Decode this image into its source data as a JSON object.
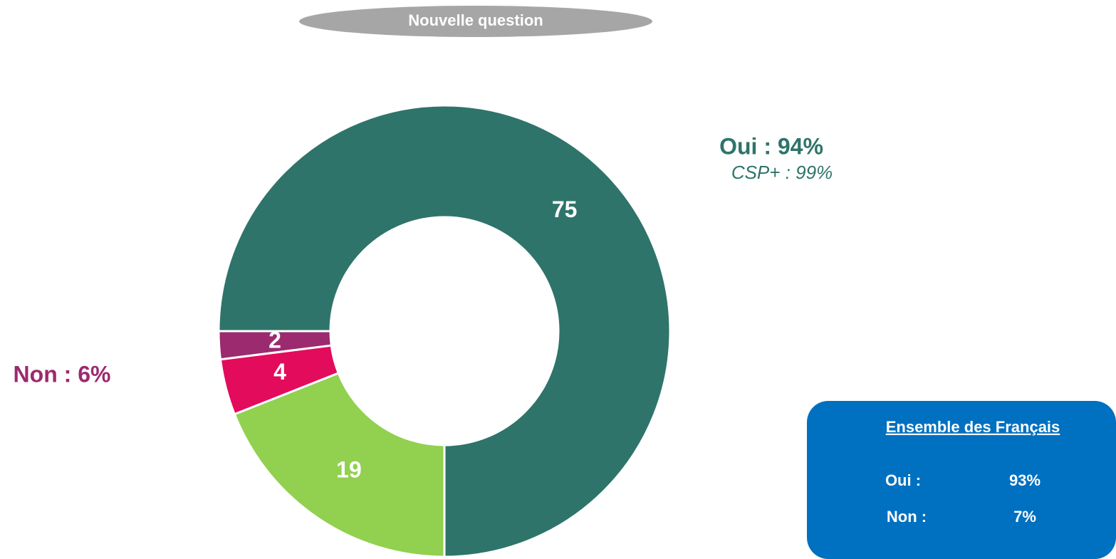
{
  "chart_data": {
    "type": "donut",
    "title": "Nouvelle question",
    "values": [
      75,
      19,
      4,
      2
    ],
    "colors": [
      "#2e746a",
      "#92d050",
      "#e30b5c",
      "#9b2a6f"
    ],
    "annotations": [
      "Oui : 94%",
      "CSP+ : 99%",
      "Non : 6%"
    ]
  },
  "summary": {
    "title": "Ensemble des Français",
    "rows": [
      [
        "Oui :",
        "93%"
      ],
      [
        "Non :",
        "7%"
      ]
    ]
  }
}
